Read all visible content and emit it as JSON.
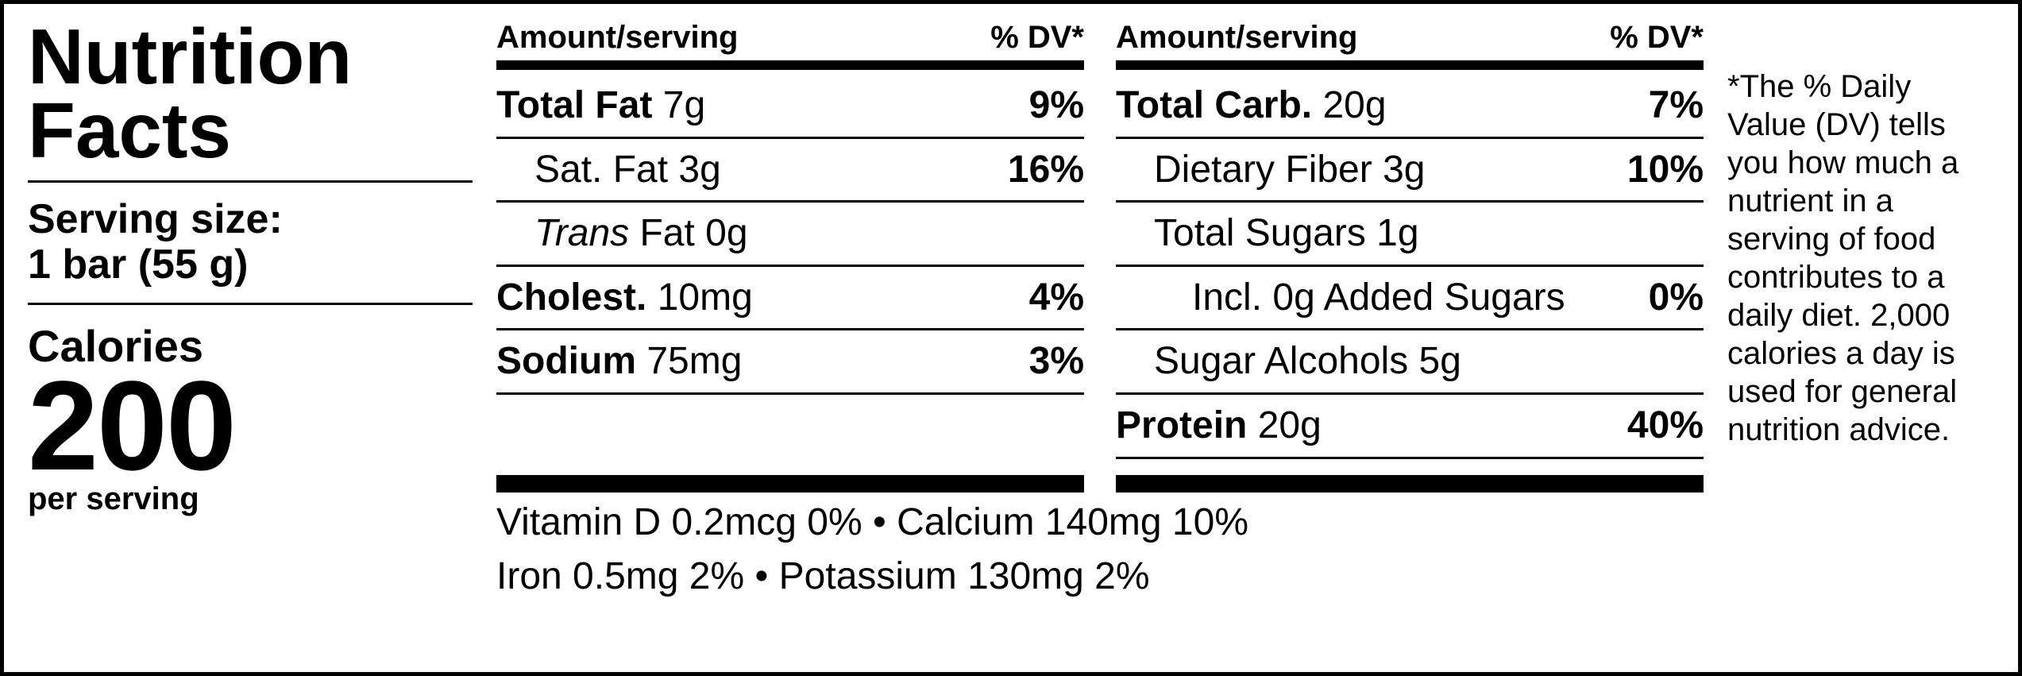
{
  "title_line1": "Nutrition",
  "title_line2": "Facts",
  "serving_label": "Serving size:",
  "serving_value": "1 bar (55 g)",
  "calories_label": "Calories",
  "calories_value": "200",
  "calories_sub": "per serving",
  "header_amount": "Amount/serving",
  "header_dv": "% DV*",
  "col1": [
    {
      "indent": 0,
      "nameBold": "Total Fat",
      "nameReg": " 7g",
      "dv": "9%"
    },
    {
      "indent": 1,
      "nameReg": "Sat. Fat 3g",
      "dv": "16%"
    },
    {
      "indent": 1,
      "nameItalic": "Trans",
      "nameReg2": " Fat 0g",
      "dv": ""
    },
    {
      "indent": 0,
      "nameBold": "Cholest.",
      "nameReg": " 10mg",
      "dv": "4%"
    },
    {
      "indent": 0,
      "nameBold": "Sodium",
      "nameReg": " 75mg",
      "dv": "3%"
    }
  ],
  "col2": [
    {
      "indent": 0,
      "nameBold": "Total Carb.",
      "nameReg": " 20g",
      "dv": "7%"
    },
    {
      "indent": 1,
      "nameReg": "Dietary Fiber 3g",
      "dv": "10%"
    },
    {
      "indent": 1,
      "nameReg": "Total Sugars 1g",
      "dv": ""
    },
    {
      "indent": 2,
      "nameReg": "Incl. 0g Added Sugars",
      "dv": "0%"
    },
    {
      "indent": 1,
      "nameReg": "Sugar Alcohols 5g",
      "dv": ""
    },
    {
      "indent": 0,
      "nameBold": "Protein",
      "nameReg": " 20g",
      "dv": "40%"
    }
  ],
  "vitamins_line1": "Vitamin D 0.2mcg 0%  •  Calcium 140mg 10%",
  "vitamins_line2": "Iron 0.5mg 2%  •  Potassium 130mg 2%",
  "footnote": "*The % Daily Value (DV) tells you how much a nutrient in a serving of food contributes to a daily diet. 2,000 calories a day is used for general nutrition advice."
}
